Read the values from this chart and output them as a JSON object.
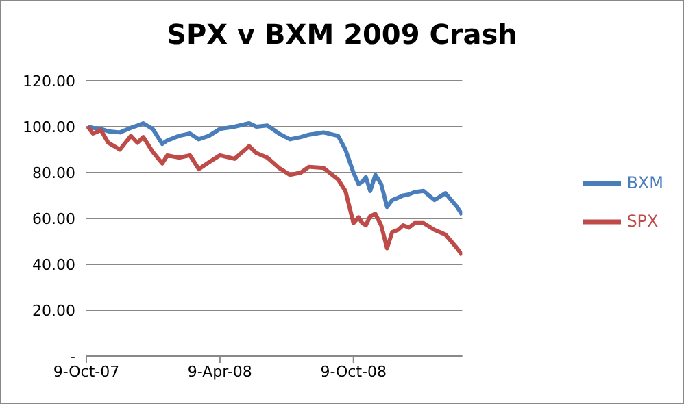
{
  "chart_data": {
    "type": "line",
    "title": "SPX v BXM 2009 Crash",
    "x": [
      "2007-10-11",
      "2007-10-18",
      "2007-10-29",
      "2007-11-08",
      "2007-11-24",
      "2007-12-09",
      "2007-12-18",
      "2007-12-26",
      "2008-01-08",
      "2008-01-21",
      "2008-01-28",
      "2008-02-13",
      "2008-02-28",
      "2008-03-11",
      "2008-03-25",
      "2008-04-09",
      "2008-04-29",
      "2008-05-19",
      "2008-05-29",
      "2008-06-13",
      "2008-06-29",
      "2008-07-14",
      "2008-07-29",
      "2008-08-09",
      "2008-08-29",
      "2008-09-18",
      "2008-09-28",
      "2008-10-09",
      "2008-10-16",
      "2008-10-21",
      "2008-10-26",
      "2008-11-01",
      "2008-11-08",
      "2008-11-16",
      "2008-11-24",
      "2008-12-01",
      "2008-12-09",
      "2008-12-16",
      "2008-12-24",
      "2009-01-01",
      "2009-01-13",
      "2009-01-28",
      "2009-02-12",
      "2009-02-28",
      "2009-03-07"
    ],
    "series": [
      {
        "name": "BXM",
        "color": "#4a7ebb",
        "values": [
          100,
          99.5,
          99,
          98,
          97.5,
          99.5,
          100.5,
          101.5,
          99,
          92.5,
          94,
          96,
          97,
          94.5,
          96,
          99,
          100,
          101.5,
          100,
          100.5,
          97,
          94.5,
          95.5,
          96.5,
          97.5,
          96,
          90,
          80,
          75,
          76,
          78,
          72,
          79,
          75,
          65,
          68,
          69,
          70,
          70.5,
          71.5,
          72,
          68,
          71,
          65,
          61.5
        ]
      },
      {
        "name": "SPX",
        "color": "#be4b48",
        "values": [
          100,
          97,
          98.5,
          93,
          90,
          96,
          93,
          95.5,
          89,
          84,
          87.5,
          86.5,
          87.5,
          81.5,
          84.5,
          87.5,
          86,
          91.5,
          88.5,
          86.5,
          82,
          79,
          80,
          82.5,
          82,
          77,
          72,
          58,
          60.5,
          58,
          57,
          61,
          62,
          57,
          47,
          54,
          55,
          57,
          56,
          58,
          58,
          55,
          53,
          47,
          44
        ]
      }
    ],
    "xlim": [
      "2007-10-09",
      "2009-03-07"
    ],
    "xticks": [
      {
        "value": "2007-10-09",
        "label": "9-Oct-07"
      },
      {
        "value": "2008-04-09",
        "label": "9-Apr-08"
      },
      {
        "value": "2008-10-09",
        "label": "9-Oct-08"
      }
    ],
    "ylim": [
      0,
      120
    ],
    "yticks": [
      {
        "value": 0,
        "label": "-"
      },
      {
        "value": 20,
        "label": "20.00"
      },
      {
        "value": 40,
        "label": "40.00"
      },
      {
        "value": 60,
        "label": "60.00"
      },
      {
        "value": 80,
        "label": "80.00"
      },
      {
        "value": 100,
        "label": "100.00"
      },
      {
        "value": 120,
        "label": "120.00"
      }
    ],
    "grid": "y",
    "legend": "right",
    "marker": "none",
    "line_style": "solid"
  }
}
